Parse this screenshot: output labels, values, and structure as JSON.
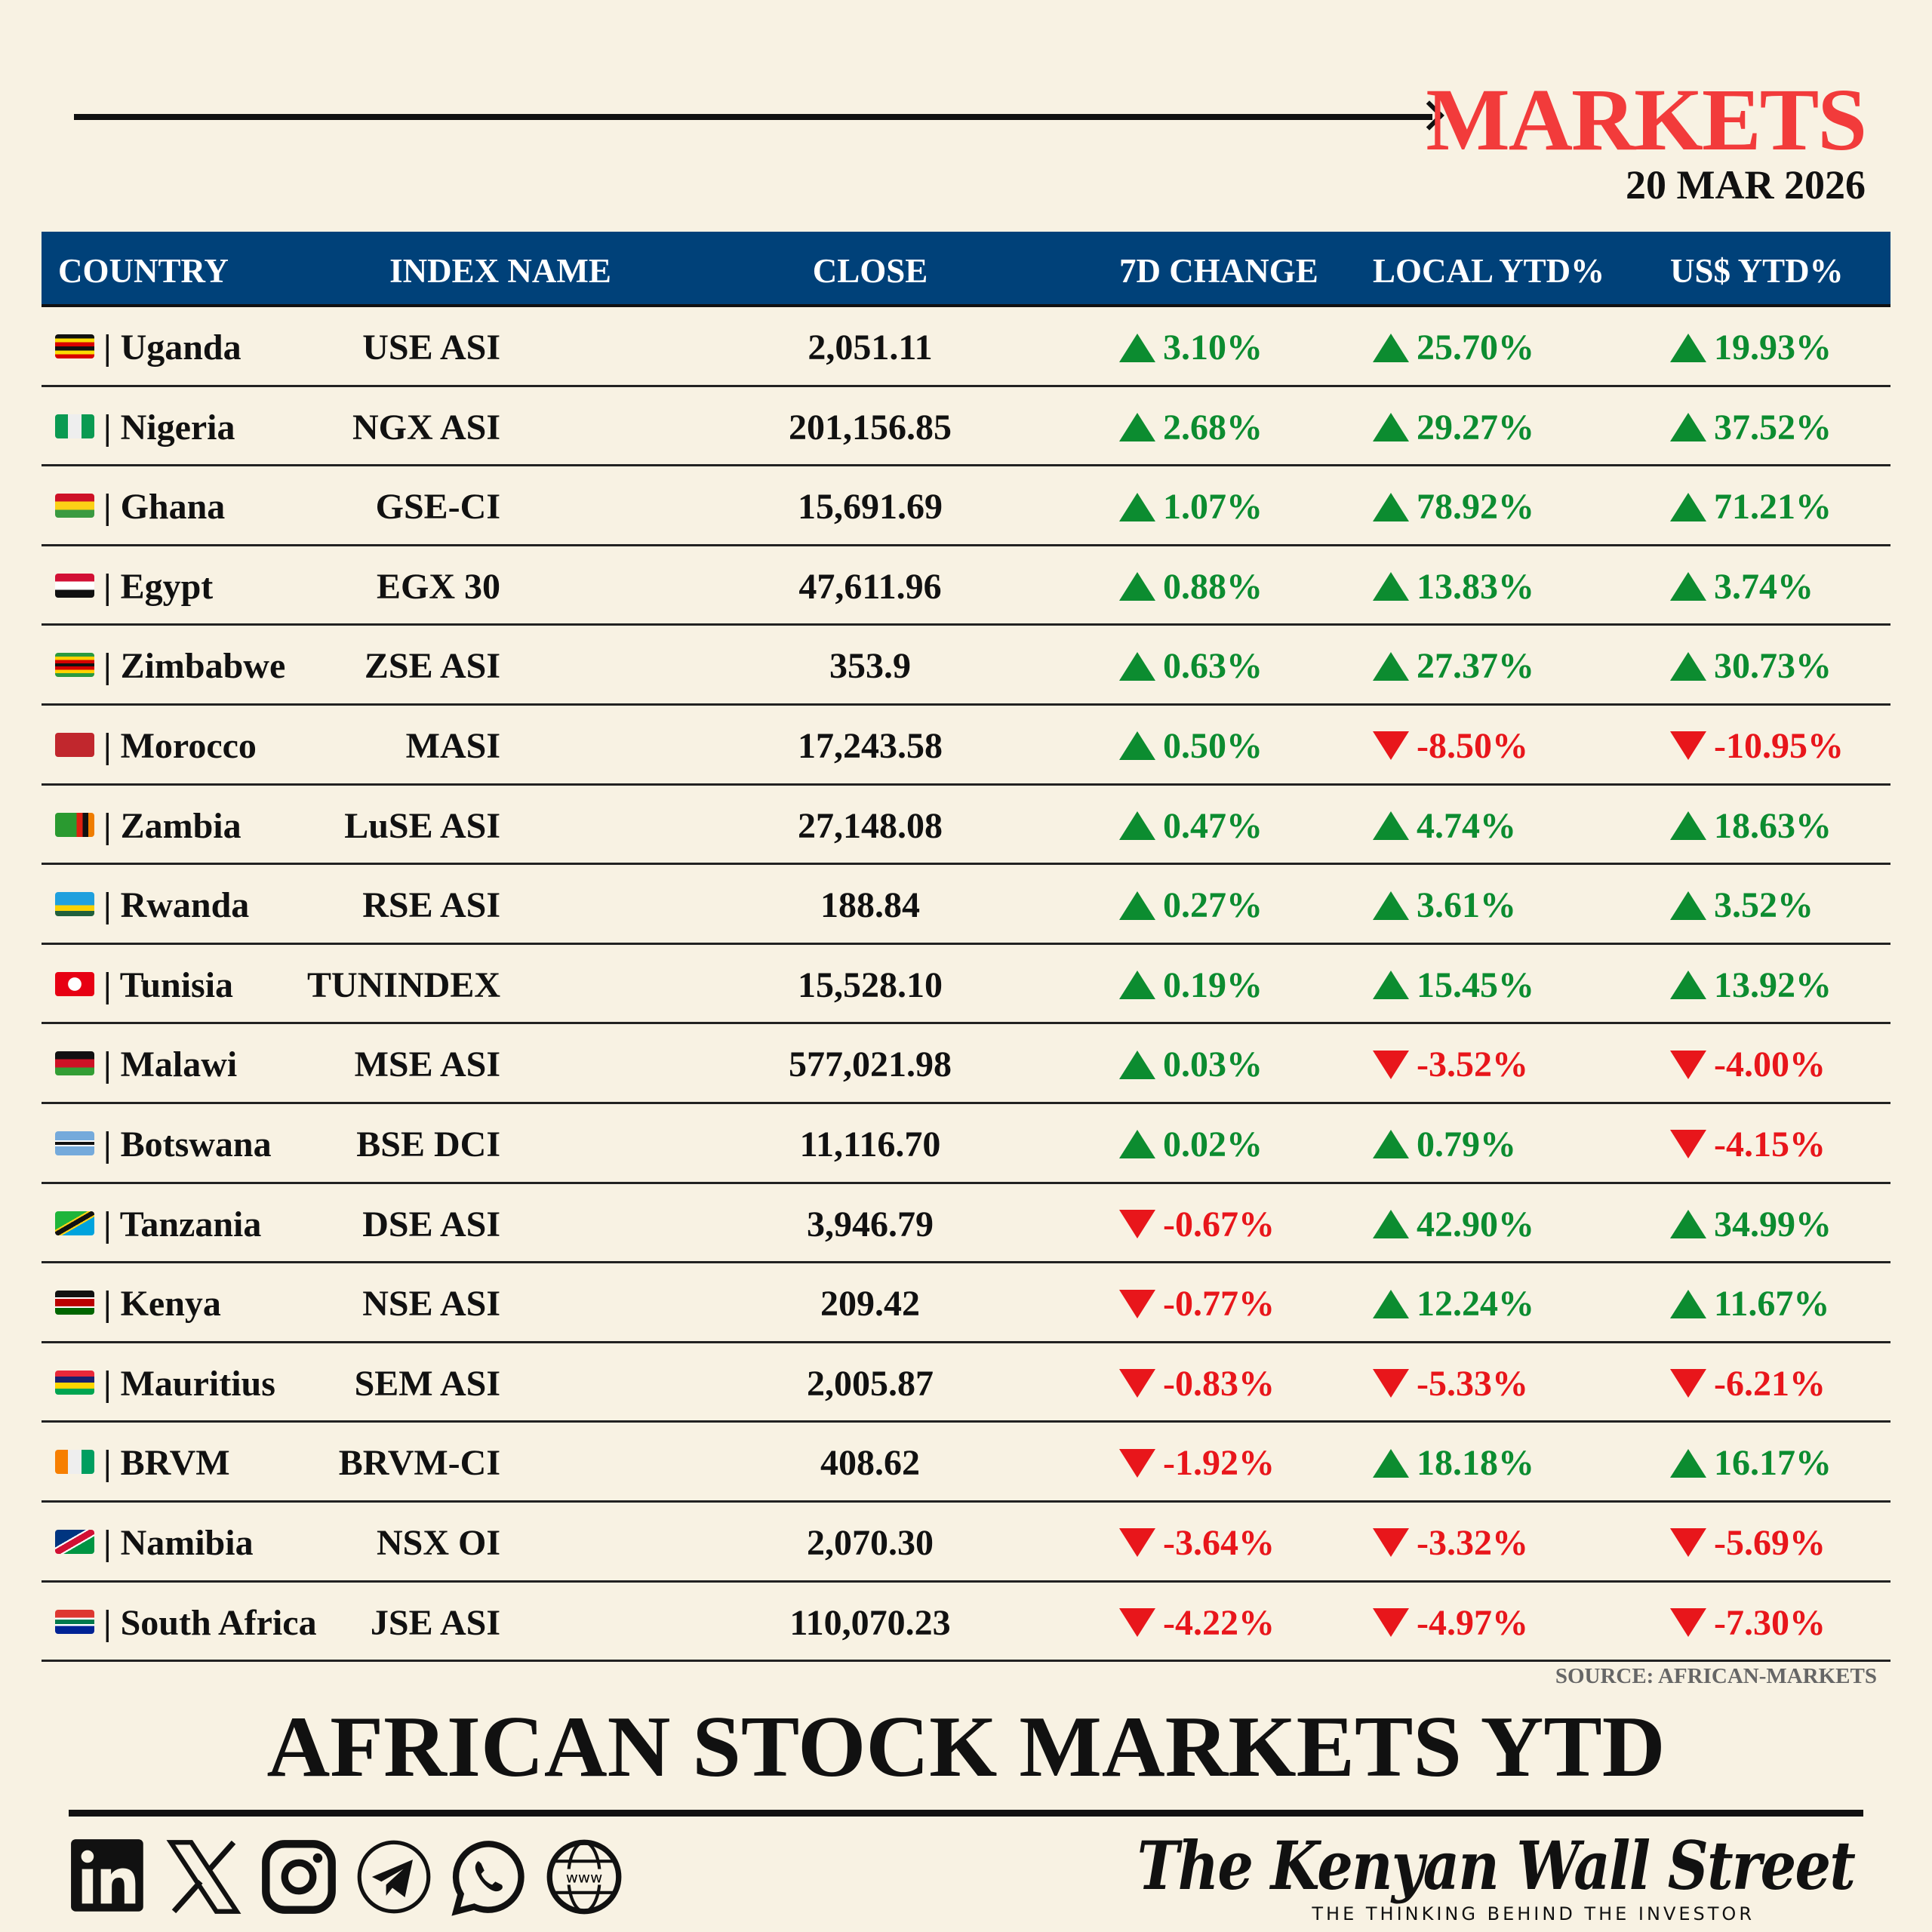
{
  "header": {
    "title": "MARKETS",
    "date": "20 MAR 2026"
  },
  "table": {
    "columns": [
      "COUNTRY",
      "INDEX NAME",
      "CLOSE",
      "7D CHANGE",
      "LOCAL YTD%",
      "US$ YTD%"
    ],
    "rows": [
      {
        "flag": "ug",
        "country": "| Uganda",
        "index": "USE ASI",
        "close": "2,051.11",
        "d7": "3.10%",
        "local": "25.70%",
        "usd": "19.93%",
        "d7_dir": "up",
        "local_dir": "up",
        "usd_dir": "up"
      },
      {
        "flag": "ng",
        "country": "| Nigeria",
        "index": "NGX ASI",
        "close": "201,156.85",
        "d7": "2.68%",
        "local": "29.27%",
        "usd": "37.52%",
        "d7_dir": "up",
        "local_dir": "up",
        "usd_dir": "up"
      },
      {
        "flag": "gh",
        "country": "| Ghana",
        "index": "GSE-CI",
        "close": "15,691.69",
        "d7": "1.07%",
        "local": "78.92%",
        "usd": "71.21%",
        "d7_dir": "up",
        "local_dir": "up",
        "usd_dir": "up"
      },
      {
        "flag": "eg",
        "country": "| Egypt",
        "index": "EGX 30",
        "close": "47,611.96",
        "d7": "0.88%",
        "local": "13.83%",
        "usd": "3.74%",
        "d7_dir": "up",
        "local_dir": "up",
        "usd_dir": "up"
      },
      {
        "flag": "zw",
        "country": "| Zimbabwe",
        "index": "ZSE ASI",
        "close": "353.9",
        "d7": "0.63%",
        "local": "27.37%",
        "usd": "30.73%",
        "d7_dir": "up",
        "local_dir": "up",
        "usd_dir": "up"
      },
      {
        "flag": "ma",
        "country": "| Morocco",
        "index": "MASI",
        "close": "17,243.58",
        "d7": "0.50%",
        "local": "-8.50%",
        "usd": "-10.95%",
        "d7_dir": "up",
        "local_dir": "down",
        "usd_dir": "down"
      },
      {
        "flag": "zm",
        "country": "| Zambia",
        "index": "LuSE ASI",
        "close": "27,148.08",
        "d7": "0.47%",
        "local": "4.74%",
        "usd": "18.63%",
        "d7_dir": "up",
        "local_dir": "up",
        "usd_dir": "up"
      },
      {
        "flag": "rw",
        "country": "| Rwanda",
        "index": "RSE ASI",
        "close": "188.84",
        "d7": "0.27%",
        "local": "3.61%",
        "usd": "3.52%",
        "d7_dir": "up",
        "local_dir": "up",
        "usd_dir": "up"
      },
      {
        "flag": "tn",
        "country": "| Tunisia",
        "index": "TUNINDEX",
        "close": "15,528.10",
        "d7": "0.19%",
        "local": "15.45%",
        "usd": "13.92%",
        "d7_dir": "up",
        "local_dir": "up",
        "usd_dir": "up"
      },
      {
        "flag": "mw",
        "country": "| Malawi",
        "index": "MSE ASI",
        "close": "577,021.98",
        "d7": "0.03%",
        "local": "-3.52%",
        "usd": "-4.00%",
        "d7_dir": "up",
        "local_dir": "down",
        "usd_dir": "down"
      },
      {
        "flag": "bw",
        "country": "| Botswana",
        "index": "BSE DCI",
        "close": "11,116.70",
        "d7": "0.02%",
        "local": "0.79%",
        "usd": "-4.15%",
        "d7_dir": "up",
        "local_dir": "up",
        "usd_dir": "down"
      },
      {
        "flag": "tz",
        "country": "| Tanzania",
        "index": "DSE ASI",
        "close": "3,946.79",
        "d7": "-0.67%",
        "local": "42.90%",
        "usd": "34.99%",
        "d7_dir": "down",
        "local_dir": "up",
        "usd_dir": "up"
      },
      {
        "flag": "ke",
        "country": "| Kenya",
        "index": "NSE ASI",
        "close": "209.42",
        "d7": "-0.77%",
        "local": "12.24%",
        "usd": "11.67%",
        "d7_dir": "down",
        "local_dir": "up",
        "usd_dir": "up"
      },
      {
        "flag": "mu",
        "country": "| Mauritius",
        "index": "SEM ASI",
        "close": "2,005.87",
        "d7": "-0.83%",
        "local": "-5.33%",
        "usd": "-6.21%",
        "d7_dir": "down",
        "local_dir": "down",
        "usd_dir": "down"
      },
      {
        "flag": "ci",
        "country": "| BRVM",
        "index": "BRVM-CI",
        "close": "408.62",
        "d7": "-1.92%",
        "local": "18.18%",
        "usd": "16.17%",
        "d7_dir": "down",
        "local_dir": "up",
        "usd_dir": "up"
      },
      {
        "flag": "na",
        "country": "| Namibia",
        "index": "NSX OI",
        "close": "2,070.30",
        "d7": "-3.64%",
        "local": "-3.32%",
        "usd": "-5.69%",
        "d7_dir": "down",
        "local_dir": "down",
        "usd_dir": "down"
      },
      {
        "flag": "za",
        "country": "| South Africa",
        "index": "JSE ASI",
        "close": "110,070.23",
        "d7": "-4.22%",
        "local": "-4.97%",
        "usd": "-7.30%",
        "d7_dir": "down",
        "local_dir": "down",
        "usd_dir": "down"
      }
    ]
  },
  "source": "SOURCE: AFRICAN-MARKETS",
  "title": "AFRICAN STOCK MARKETS YTD",
  "footer": {
    "social_icons": [
      "linkedin-icon",
      "x-icon",
      "instagram-icon",
      "telegram-icon",
      "whatsapp-icon",
      "website-icon"
    ],
    "website_label": "www",
    "logo": "The Kenyan Wall Street",
    "tagline": "THE THINKING BEHIND THE INVESTOR"
  },
  "colors": {
    "accent": "#f23b3b",
    "header": "#004179",
    "up": "#0c8c30",
    "down": "#e8161b",
    "background": "#f8f2e3"
  }
}
